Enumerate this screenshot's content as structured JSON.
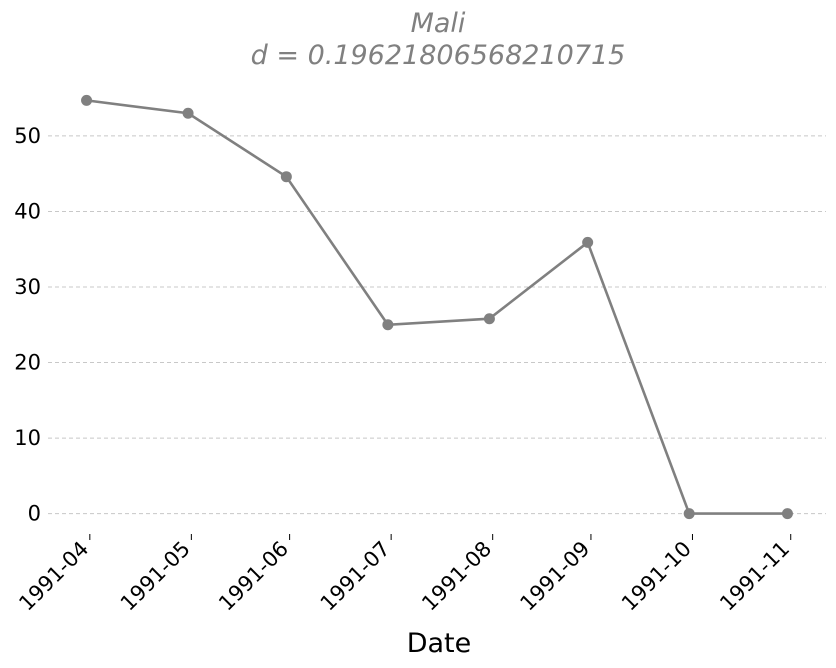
{
  "chart_data": {
    "type": "line",
    "title": "Mali",
    "subtitle": "d = 0.19621806568210715",
    "xlabel": "Date",
    "ylabel": "",
    "x": [
      "1991-04",
      "1991-05",
      "1991-06",
      "1991-07",
      "1991-08",
      "1991-09",
      "1991-10",
      "1991-11"
    ],
    "x_dates": [
      "1991-04-30",
      "1991-05-31",
      "1991-06-30",
      "1991-07-31",
      "1991-08-31",
      "1991-09-30",
      "1991-10-31",
      "1991-11-30"
    ],
    "yticks": [
      0,
      10,
      20,
      30,
      40,
      50
    ],
    "ylim": [
      -2.7,
      57.4
    ],
    "grid": "horizontal dashed",
    "series": [
      {
        "values": [
          54.7,
          53.0,
          44.6,
          25.0,
          25.8,
          35.9,
          0.0,
          0.0
        ]
      }
    ],
    "colors": {
      "series": "#808080",
      "title": "#808080",
      "grid": "#c8c8c8"
    }
  }
}
